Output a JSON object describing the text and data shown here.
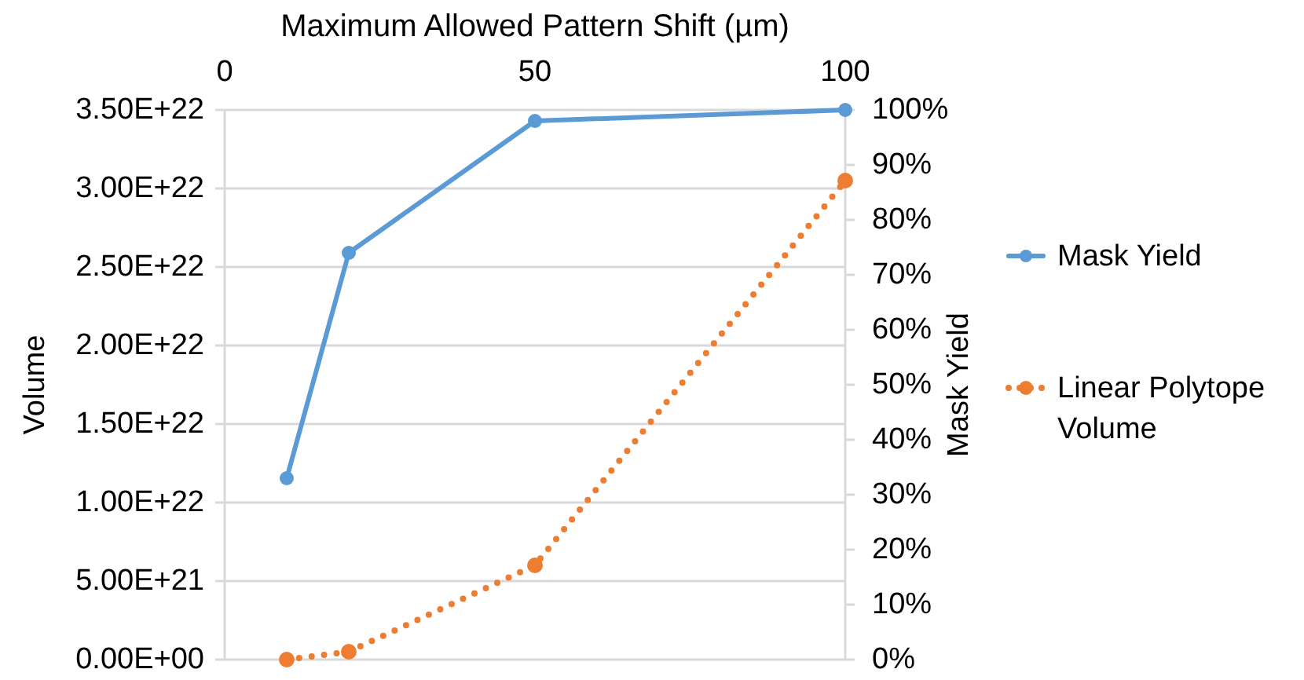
{
  "chart_data": {
    "type": "line",
    "xlabel": "Maximum Allowed Pattern Shift (µm)",
    "ylabel": "Volume",
    "y2label": "Mask Yield",
    "x": [
      10,
      20,
      50,
      100
    ],
    "xlim": [
      0,
      100
    ],
    "xticks": [
      0,
      50,
      100
    ],
    "ylim": [
      0,
      3.5e+22
    ],
    "yticks": [
      {
        "value": 0,
        "label": "0.00E+00"
      },
      {
        "value": 5e+21,
        "label": "5.00E+21"
      },
      {
        "value": 1e+22,
        "label": "1.00E+22"
      },
      {
        "value": 1.5e+22,
        "label": "1.50E+22"
      },
      {
        "value": 2e+22,
        "label": "2.00E+22"
      },
      {
        "value": 2.5e+22,
        "label": "2.50E+22"
      },
      {
        "value": 3e+22,
        "label": "3.00E+22"
      },
      {
        "value": 3.5e+22,
        "label": "3.50E+22"
      }
    ],
    "y2lim": [
      0,
      100
    ],
    "y2ticks": [
      {
        "value": 0,
        "label": "0%"
      },
      {
        "value": 10,
        "label": "10%"
      },
      {
        "value": 20,
        "label": "20%"
      },
      {
        "value": 30,
        "label": "30%"
      },
      {
        "value": 40,
        "label": "40%"
      },
      {
        "value": 50,
        "label": "50%"
      },
      {
        "value": 60,
        "label": "60%"
      },
      {
        "value": 70,
        "label": "70%"
      },
      {
        "value": 80,
        "label": "80%"
      },
      {
        "value": 90,
        "label": "90%"
      },
      {
        "value": 100,
        "label": "100%"
      }
    ],
    "series": [
      {
        "name": "Mask Yield",
        "color": "#5b9bd5",
        "axis": "y2",
        "line_style": "solid",
        "values": [
          33,
          74,
          98,
          100
        ]
      },
      {
        "name": "Linear Polytope Volume",
        "color": "#ed7d31",
        "line_style": "dotted",
        "values": [
          0,
          5e+20,
          6e+21,
          3.05e+22
        ]
      }
    ],
    "grid": "y",
    "legend": "right",
    "marker": "circle"
  }
}
